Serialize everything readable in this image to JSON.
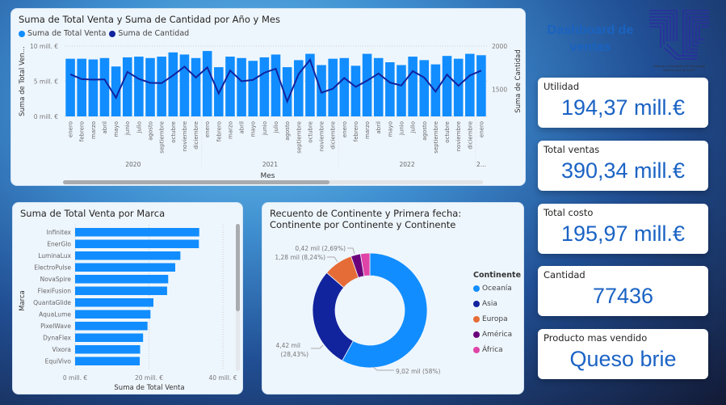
{
  "header": {
    "title": "Dashboard de ventas",
    "logo_text": "Instituto Universitario de Tecnología \"Antonio José de Sucre\""
  },
  "colors": {
    "bar": "#118dff",
    "line": "#12239e",
    "kpi_value": "#1b63c4"
  },
  "kpis": [
    {
      "label": "Utilidad",
      "value": "194,37 mill.€"
    },
    {
      "label": "Total ventas",
      "value": "390,34 mill.€"
    },
    {
      "label": "Total costo",
      "value": "195,97 mill.€"
    },
    {
      "label": "Cantidad",
      "value": "77436"
    },
    {
      "label": "Producto mas vendido",
      "value": "Queso brie"
    }
  ],
  "chart_data": [
    {
      "type": "bar+line",
      "title": "Suma de Total Venta y Suma de Cantidad por Año y Mes",
      "legend": [
        "Suma de Total Venta",
        "Suma de Cantidad"
      ],
      "legend_position": "top-left",
      "xlabel": "Mes",
      "ylabel": "Suma de Total Ven...",
      "y2label": "Suma de Cantidad",
      "yticks": [
        "0 mill. €",
        "5 mill. €",
        "10 mill. €"
      ],
      "y2ticks": [
        "1500",
        "2000"
      ],
      "ylim": [
        0,
        10
      ],
      "y2lim": [
        1185,
        2000
      ],
      "months": [
        "enero",
        "febrero",
        "marzo",
        "abril",
        "mayo",
        "junio",
        "julio",
        "agosto",
        "septiembre",
        "octubre",
        "noviembre",
        "diciembre",
        "enero",
        "febrero",
        "marzo",
        "abril",
        "mayo",
        "junio",
        "julio",
        "agosto",
        "septiembre",
        "octubre",
        "noviembre",
        "diciembre",
        "enero",
        "febrero",
        "marzo",
        "abril",
        "mayo",
        "junio",
        "julio",
        "agosto",
        "septiembre",
        "octubre",
        "noviembre",
        "diciembre",
        "enero"
      ],
      "years": [
        {
          "label": "2020",
          "count": 12
        },
        {
          "label": "2021",
          "count": 12
        },
        {
          "label": "2022",
          "count": 12
        },
        {
          "label": "2...",
          "count": 1
        }
      ],
      "series": [
        {
          "name": "Suma de Total Venta",
          "unit": "mill. €",
          "values": [
            8.2,
            8.2,
            8.1,
            8.3,
            7.1,
            8.4,
            8.5,
            8.3,
            8.5,
            9.1,
            8.8,
            8.3,
            9.3,
            7.0,
            8.5,
            8.3,
            7.9,
            8.4,
            8.8,
            7.0,
            8.0,
            8.9,
            7.3,
            8.2,
            8.3,
            7.2,
            8.9,
            8.3,
            7.7,
            7.3,
            8.5,
            8.0,
            7.4,
            8.6,
            8.2,
            8.9,
            8.7
          ]
        },
        {
          "name": "Suma de Cantidad",
          "values": [
            1673,
            1617,
            1611,
            1614,
            1401,
            1701,
            1620,
            1574,
            1571,
            1660,
            1762,
            1636,
            1753,
            1451,
            1716,
            1593,
            1608,
            1691,
            1738,
            1358,
            1676,
            1840,
            1460,
            1506,
            1630,
            1528,
            1599,
            1682,
            1577,
            1543,
            1710,
            1636,
            1472,
            1670,
            1540,
            1660,
            1716
          ]
        }
      ]
    },
    {
      "type": "bar",
      "title": "Suma de Total Venta por Marca",
      "xlabel": "Suma de Total Venta",
      "ylabel": "Marca",
      "xticks": [
        "0 mill. €",
        "20 mill. €",
        "40 mill. €"
      ],
      "xlim": [
        0,
        40
      ],
      "categories": [
        "Infinitex",
        "EnerGlo",
        "LuminaLux",
        "ElectroPulse",
        "NovaSpire",
        "FlexiFusion",
        "QuantaGlide",
        "AquaLume",
        "PixelWave",
        "DynaFlex",
        "Vixora",
        "EquiVivo"
      ],
      "values": [
        33.6,
        33.5,
        28.5,
        27.1,
        25.2,
        24.9,
        21.2,
        20.4,
        19.6,
        18.4,
        17.6,
        17.5
      ]
    },
    {
      "type": "pie",
      "title": "Recuento de Continente y Primera fecha: Continente por Continente y Continente",
      "legend_title": "Continente",
      "legend_position": "right",
      "slices": [
        {
          "name": "Oceanía",
          "value": 9.02,
          "percent": 58,
          "label": "9,02 mil (58%)",
          "color": "#118dff"
        },
        {
          "name": "Asia",
          "value": 4.42,
          "percent": 28.43,
          "label_a": "4,42 mil",
          "label_b": "(28,43%)",
          "color": "#12239e"
        },
        {
          "name": "Europa",
          "value": 1.28,
          "percent": 8.24,
          "label": "1,28 mil (8,24%)",
          "color": "#e66c37"
        },
        {
          "name": "América",
          "value": 0.42,
          "percent": 2.69,
          "label": "0,42 mil (2,69%)",
          "color": "#6b007b"
        },
        {
          "name": "África",
          "value": 0.41,
          "percent": 2.64,
          "color": "#e044a7"
        }
      ]
    }
  ]
}
